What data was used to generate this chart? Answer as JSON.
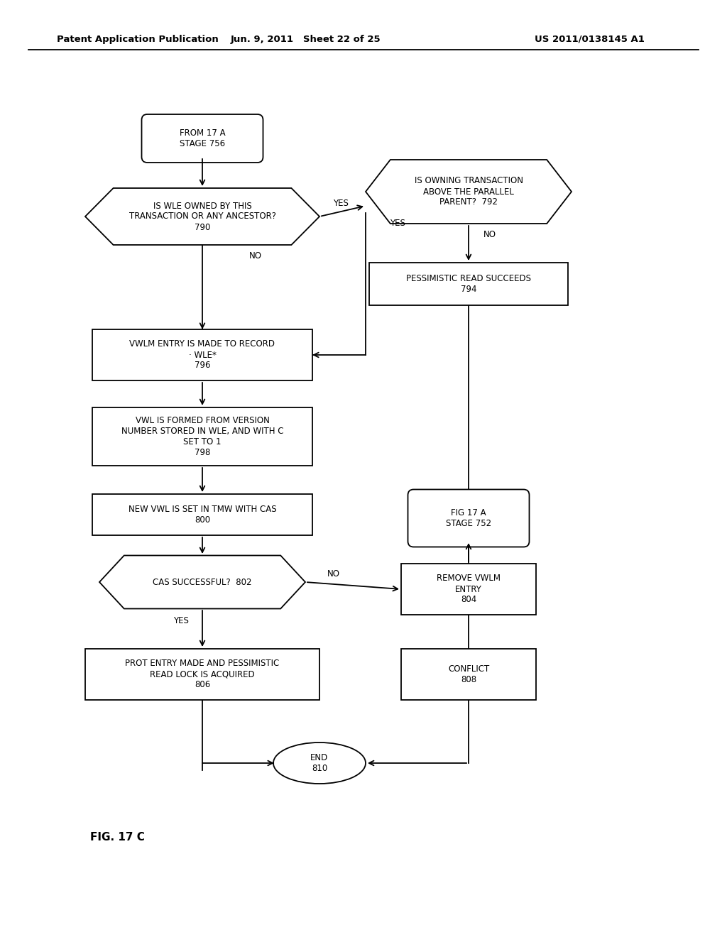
{
  "background_color": "#ffffff",
  "header_left": "Patent Application Publication",
  "header_mid": "Jun. 9, 2011   Sheet 22 of 25",
  "header_right": "US 2011/0138145 A1",
  "footer_label": "FIG. 17 C",
  "font_size_node": 8.5,
  "font_size_header": 9.5,
  "font_size_footer": 11
}
